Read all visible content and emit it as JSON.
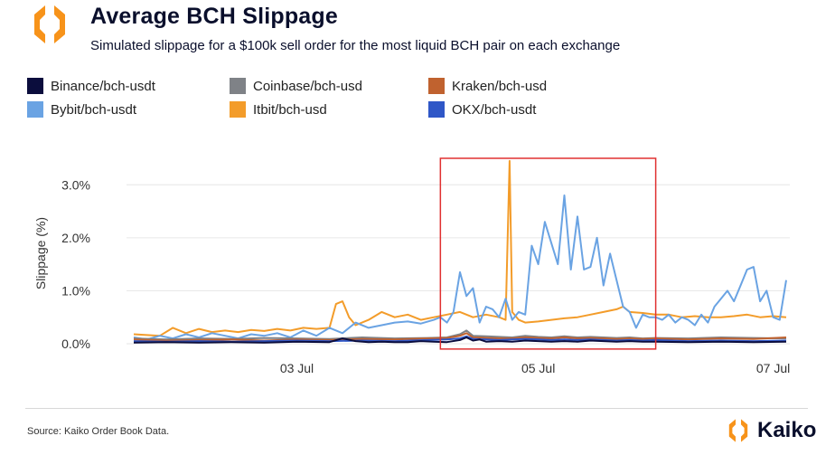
{
  "header": {
    "title": "Average BCH Slippage",
    "subtitle": "Simulated slippage for a $100k sell order for the most liquid BCH pair on each exchange"
  },
  "colors": {
    "brand_orange": "#f7931a",
    "title_navy": "#0a0f2c",
    "highlight_box": "#e03030"
  },
  "footer": {
    "source": "Source: Kaiko Order Book Data.",
    "brand": "Kaiko"
  },
  "chart_data": {
    "type": "line",
    "title": "Average BCH Slippage",
    "subtitle": "Simulated slippage for a $100k sell order for the most liquid BCH pair on each exchange",
    "ylabel": "Slippage (%)",
    "xlabel": "",
    "ylim": [
      0,
      3.5
    ],
    "yticks": [
      {
        "value": 0,
        "label": "0.0%"
      },
      {
        "value": 1,
        "label": "1.0%"
      },
      {
        "value": 2,
        "label": "2.0%"
      },
      {
        "value": 3,
        "label": "3.0%"
      }
    ],
    "xlim": [
      0,
      100
    ],
    "xticks": [
      {
        "value": 25,
        "label": "03 Jul"
      },
      {
        "value": 62,
        "label": "05 Jul"
      },
      {
        "value": 98,
        "label": "07 Jul"
      }
    ],
    "grid": "horizontal",
    "legend_position": "top",
    "highlight_region": {
      "x_start": 47,
      "x_end": 80,
      "y_start": -0.1,
      "y_end": 3.5
    },
    "series": [
      {
        "name": "Binance/bch-usdt",
        "color": "#0b0d3d",
        "x": [
          0,
          5,
          10,
          15,
          20,
          25,
          30,
          32,
          34,
          36,
          38,
          40,
          42,
          44,
          46,
          48,
          50,
          51,
          52,
          53,
          54,
          56,
          58,
          60,
          62,
          64,
          66,
          68,
          70,
          72,
          74,
          76,
          78,
          80,
          85,
          90,
          95,
          100
        ],
        "values": [
          0.02,
          0.03,
          0.02,
          0.03,
          0.02,
          0.04,
          0.03,
          0.1,
          0.05,
          0.03,
          0.04,
          0.03,
          0.03,
          0.05,
          0.04,
          0.03,
          0.07,
          0.12,
          0.06,
          0.08,
          0.04,
          0.05,
          0.04,
          0.06,
          0.05,
          0.04,
          0.05,
          0.04,
          0.06,
          0.05,
          0.04,
          0.05,
          0.04,
          0.04,
          0.03,
          0.04,
          0.03,
          0.04
        ]
      },
      {
        "name": "Bybit/bch-usdt",
        "color": "#6aa3e3",
        "x": [
          0,
          2,
          4,
          6,
          8,
          10,
          12,
          14,
          16,
          18,
          20,
          22,
          24,
          26,
          28,
          30,
          32,
          34,
          36,
          38,
          40,
          42,
          44,
          46,
          47,
          48,
          49,
          50,
          51,
          52,
          53,
          54,
          55,
          56,
          57,
          58,
          59,
          60,
          61,
          62,
          63,
          64,
          65,
          66,
          67,
          68,
          69,
          70,
          71,
          72,
          73,
          74,
          75,
          76,
          77,
          78,
          79,
          80,
          81,
          82,
          83,
          84,
          85,
          86,
          87,
          88,
          89,
          90,
          91,
          92,
          93,
          94,
          95,
          96,
          97,
          98,
          99,
          100
        ],
        "values": [
          0.12,
          0.08,
          0.15,
          0.1,
          0.18,
          0.12,
          0.2,
          0.15,
          0.1,
          0.18,
          0.15,
          0.2,
          0.12,
          0.25,
          0.15,
          0.3,
          0.2,
          0.4,
          0.3,
          0.35,
          0.4,
          0.42,
          0.38,
          0.45,
          0.5,
          0.4,
          0.6,
          1.35,
          0.9,
          1.05,
          0.4,
          0.7,
          0.65,
          0.5,
          0.85,
          0.45,
          0.6,
          0.55,
          1.85,
          1.5,
          2.3,
          1.9,
          1.5,
          2.8,
          1.4,
          2.4,
          1.4,
          1.45,
          2.0,
          1.1,
          1.7,
          1.2,
          0.7,
          0.6,
          0.3,
          0.55,
          0.5,
          0.5,
          0.45,
          0.55,
          0.4,
          0.5,
          0.45,
          0.35,
          0.55,
          0.4,
          0.7,
          0.85,
          1.0,
          0.8,
          1.1,
          1.4,
          1.45,
          0.8,
          1.0,
          0.5,
          0.45,
          1.2
        ]
      },
      {
        "name": "Coinbase/bch-usd",
        "color": "#7f8287",
        "x": [
          0,
          5,
          10,
          15,
          20,
          25,
          30,
          35,
          40,
          45,
          48,
          50,
          51,
          52,
          54,
          56,
          58,
          60,
          62,
          64,
          66,
          68,
          70,
          72,
          74,
          76,
          78,
          80,
          85,
          90,
          95,
          100
        ],
        "values": [
          0.1,
          0.08,
          0.1,
          0.09,
          0.11,
          0.1,
          0.09,
          0.12,
          0.1,
          0.11,
          0.12,
          0.18,
          0.25,
          0.15,
          0.14,
          0.13,
          0.12,
          0.15,
          0.13,
          0.12,
          0.14,
          0.12,
          0.13,
          0.12,
          0.11,
          0.12,
          0.1,
          0.11,
          0.1,
          0.12,
          0.11,
          0.1
        ]
      },
      {
        "name": "Itbit/bch-usd",
        "color": "#f39c2a",
        "x": [
          0,
          4,
          6,
          8,
          10,
          12,
          14,
          16,
          18,
          20,
          22,
          24,
          26,
          28,
          30,
          31,
          32,
          33,
          34,
          36,
          38,
          40,
          42,
          44,
          46,
          48,
          50,
          52,
          54,
          56,
          57,
          57.6,
          58,
          59,
          60,
          62,
          64,
          66,
          68,
          70,
          72,
          74,
          75,
          76,
          78,
          80,
          82,
          84,
          86,
          88,
          90,
          92,
          94,
          96,
          98,
          100
        ],
        "values": [
          0.18,
          0.15,
          0.3,
          0.2,
          0.28,
          0.22,
          0.25,
          0.22,
          0.26,
          0.24,
          0.28,
          0.25,
          0.3,
          0.28,
          0.3,
          0.75,
          0.8,
          0.5,
          0.35,
          0.45,
          0.6,
          0.5,
          0.55,
          0.45,
          0.5,
          0.55,
          0.6,
          0.5,
          0.55,
          0.5,
          0.45,
          3.45,
          0.6,
          0.45,
          0.4,
          0.42,
          0.45,
          0.48,
          0.5,
          0.55,
          0.6,
          0.65,
          0.7,
          0.6,
          0.58,
          0.55,
          0.55,
          0.5,
          0.52,
          0.5,
          0.5,
          0.52,
          0.55,
          0.5,
          0.52,
          0.5
        ]
      },
      {
        "name": "Kraken/bch-usd",
        "color": "#c0622f",
        "x": [
          0,
          5,
          10,
          15,
          20,
          25,
          30,
          35,
          40,
          45,
          48,
          50,
          51,
          52,
          54,
          56,
          58,
          60,
          62,
          64,
          66,
          68,
          70,
          72,
          74,
          76,
          78,
          80,
          85,
          90,
          95,
          100
        ],
        "values": [
          0.08,
          0.06,
          0.07,
          0.08,
          0.06,
          0.08,
          0.07,
          0.09,
          0.08,
          0.1,
          0.11,
          0.15,
          0.2,
          0.12,
          0.11,
          0.1,
          0.1,
          0.12,
          0.11,
          0.1,
          0.12,
          0.1,
          0.11,
          0.1,
          0.09,
          0.1,
          0.09,
          0.1,
          0.08,
          0.1,
          0.09,
          0.12
        ]
      },
      {
        "name": "OKX/bch-usdt",
        "color": "#2f57c7",
        "x": [
          0,
          5,
          10,
          15,
          20,
          25,
          30,
          35,
          40,
          45,
          48,
          50,
          51,
          52,
          54,
          56,
          58,
          60,
          62,
          64,
          66,
          68,
          70,
          72,
          74,
          76,
          78,
          80,
          85,
          90,
          95,
          100
        ],
        "values": [
          0.05,
          0.04,
          0.05,
          0.04,
          0.05,
          0.06,
          0.05,
          0.06,
          0.05,
          0.07,
          0.08,
          0.1,
          0.14,
          0.09,
          0.08,
          0.07,
          0.08,
          0.09,
          0.08,
          0.07,
          0.08,
          0.07,
          0.08,
          0.07,
          0.06,
          0.07,
          0.06,
          0.07,
          0.05,
          0.06,
          0.05,
          0.06
        ]
      }
    ]
  }
}
